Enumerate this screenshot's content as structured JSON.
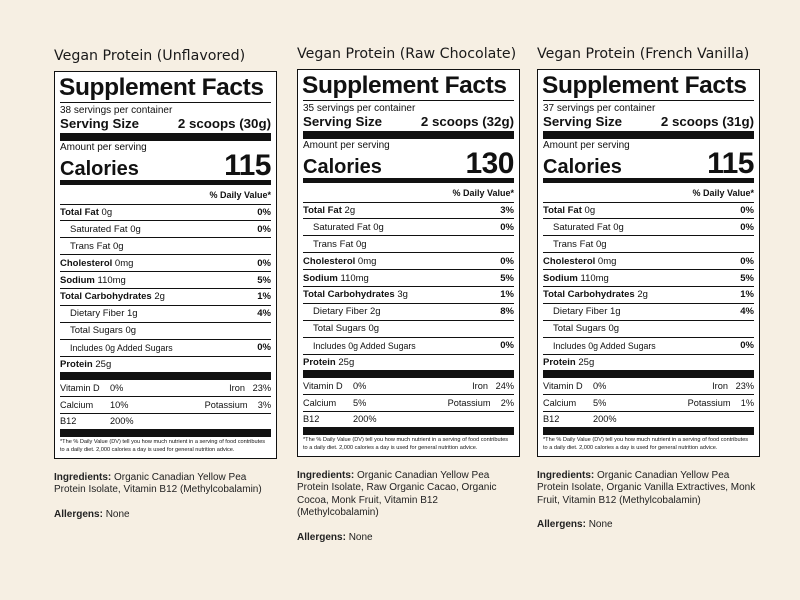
{
  "labels": [
    {
      "product": "Vegan Protein (Unflavored)",
      "servings_per_container": "38 servings per container",
      "serving_size_label": "Serving Size",
      "serving_size": "2 scoops (30g)",
      "amount_per_serving": "Amount per serving",
      "calories_label": "Calories",
      "calories": "115",
      "dv_header": "% Daily Value*",
      "total_fat": "0g",
      "total_fat_dv": "0%",
      "sat_fat": "0g",
      "sat_fat_dv": "0%",
      "trans_fat": "0g",
      "cholesterol": "0mg",
      "cholesterol_dv": "0%",
      "sodium": "110mg",
      "sodium_dv": "5%",
      "carbs": "2g",
      "carbs_dv": "1%",
      "fiber": "1g",
      "fiber_dv": "4%",
      "sugars": "0g",
      "added_sugars": "Includes 0g Added Sugars",
      "added_sugars_dv": "0%",
      "protein": "25g",
      "vitamin_d": "0%",
      "iron": "23%",
      "calcium": "10%",
      "potassium": "3%",
      "b12": "200%",
      "ingredients": "Organic Canadian Yellow Pea Protein Isolate, Vitamin B12 (Methylcobalamin)",
      "allergens": "None"
    },
    {
      "product": "Vegan Protein (Raw Chocolate)",
      "servings_per_container": "35 servings per container",
      "serving_size_label": "Serving Size",
      "serving_size": "2 scoops (32g)",
      "amount_per_serving": "Amount per serving",
      "calories_label": "Calories",
      "calories": "130",
      "dv_header": "% Daily Value*",
      "total_fat": "2g",
      "total_fat_dv": "3%",
      "sat_fat": "0g",
      "sat_fat_dv": "0%",
      "trans_fat": "0g",
      "cholesterol": "0mg",
      "cholesterol_dv": "0%",
      "sodium": "110mg",
      "sodium_dv": "5%",
      "carbs": "3g",
      "carbs_dv": "1%",
      "fiber": "2g",
      "fiber_dv": "8%",
      "sugars": "0g",
      "added_sugars": "Includes 0g Added Sugars",
      "added_sugars_dv": "0%",
      "protein": "25g",
      "vitamin_d": "0%",
      "iron": "24%",
      "calcium": "5%",
      "potassium": "2%",
      "b12": "200%",
      "ingredients": "Organic Canadian Yellow Pea Protein Isolate, Raw Organic Cacao, Organic Cocoa, Monk Fruit, Vitamin B12 (Methylcobalamin)",
      "allergens": "None"
    },
    {
      "product": "Vegan Protein (French Vanilla)",
      "servings_per_container": "37 servings per container",
      "serving_size_label": "Serving Size",
      "serving_size": "2 scoops (31g)",
      "amount_per_serving": "Amount per serving",
      "calories_label": "Calories",
      "calories": "115",
      "dv_header": "% Daily Value*",
      "total_fat": "0g",
      "total_fat_dv": "0%",
      "sat_fat": "0g",
      "sat_fat_dv": "0%",
      "trans_fat": "0g",
      "cholesterol": "0mg",
      "cholesterol_dv": "0%",
      "sodium": "110mg",
      "sodium_dv": "5%",
      "carbs": "2g",
      "carbs_dv": "1%",
      "fiber": "1g",
      "fiber_dv": "4%",
      "sugars": "0g",
      "added_sugars": "Includes 0g Added Sugars",
      "added_sugars_dv": "0%",
      "protein": "25g",
      "vitamin_d": "0%",
      "iron": "23%",
      "calcium": "5%",
      "potassium": "1%",
      "b12": "200%",
      "ingredients": "Organic Canadian Yellow Pea Protein Isolate, Organic Vanilla Extractives, Monk Fruit, Vitamin B12 (Methylcobalamin)",
      "allergens": "None"
    }
  ],
  "common": {
    "title": "Supplement Facts",
    "total_fat_label": "Total Fat",
    "sat_fat_label": "Saturated Fat",
    "trans_fat_label": "Trans Fat",
    "cholesterol_label": "Cholesterol",
    "sodium_label": "Sodium",
    "carbs_label": "Total Carbohydrates",
    "fiber_label": "Dietary Fiber",
    "sugars_label": "Total Sugars",
    "protein_label": "Protein",
    "vitamin_d_label": "Vitamin D",
    "iron_label": "Iron",
    "calcium_label": "Calcium",
    "potassium_label": "Potassium",
    "b12_label": "B12",
    "footnote": "*The % Daily Value (DV) tell you how much nutrient in a serving of food contributes to a daily diet. 2,000 calories a day is used for general nutrition advice.",
    "ingredients_label": "Ingredients:",
    "allergens_label": "Allergens:"
  }
}
